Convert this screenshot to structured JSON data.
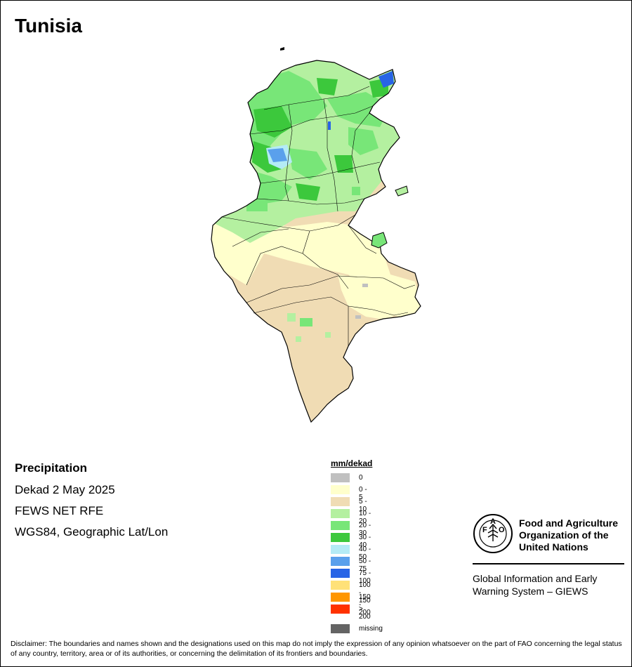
{
  "title": "Tunisia",
  "info": {
    "heading": "Precipitation",
    "lines": [
      "Dekad 2 May 2025",
      "FEWS NET RFE",
      "WGS84, Geographic Lat/Lon"
    ]
  },
  "legend": {
    "title": "mm/dekad",
    "items": [
      {
        "label": "0",
        "color": "#c0c0c0"
      },
      {
        "label": "0 - 5",
        "color": "#ffffcc"
      },
      {
        "label": "5 - 10",
        "color": "#f0dcb4"
      },
      {
        "label": "10 - 20",
        "color": "#b4f0a0"
      },
      {
        "label": "20 - 30",
        "color": "#78e678"
      },
      {
        "label": "30 - 40",
        "color": "#3cc83c"
      },
      {
        "label": "40 - 50",
        "color": "#b4ebf5"
      },
      {
        "label": "50 - 75",
        "color": "#5aa0ec"
      },
      {
        "label": "75 - 100",
        "color": "#2864e6"
      },
      {
        "label": "100 - 150",
        "color": "#ffe178"
      },
      {
        "label": "150 - 200",
        "color": "#ff9600"
      },
      {
        "label": "> 200",
        "color": "#ff3200"
      }
    ],
    "missing": {
      "label": "missing",
      "color": "#646464"
    }
  },
  "org": {
    "logo_letters": [
      "F",
      "A",
      "O"
    ],
    "name_lines": [
      "Food and Agriculture",
      "Organization of the",
      "United Nations"
    ],
    "system_lines": [
      "Global Information and Early",
      "Warning System – GIEWS"
    ]
  },
  "disclaimer": "Disclaimer: The boundaries and names shown and the designations used on this map do not imply the expression of any opinion whatsoever on the part of FAO concerning the legal status of any country, territory, area or of its authorities, or concerning the delimitation of its frontiers and boundaries."
}
